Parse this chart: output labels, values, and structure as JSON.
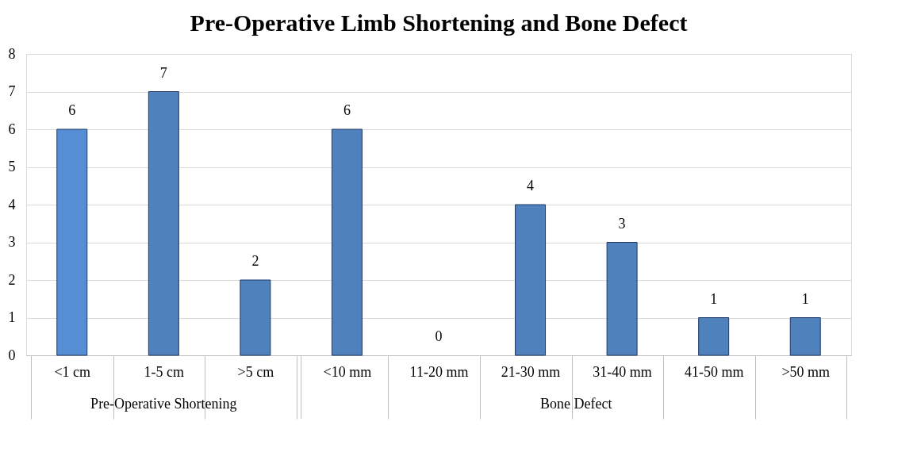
{
  "chart_data": {
    "type": "bar",
    "title": "Pre-Operative Limb Shortening and Bone Defect",
    "categories": [
      "<1 cm",
      "1-5 cm",
      ">5 cm",
      "<10 mm",
      "11-20 mm",
      "21-30 mm",
      "31-40 mm",
      "41-50 mm",
      ">50 mm"
    ],
    "values": [
      6,
      7,
      2,
      6,
      0,
      4,
      3,
      1,
      1
    ],
    "colors": [
      "#558ed5",
      "#4f81bd",
      "#4f81bd",
      "#4f81bd",
      "#4f81bd",
      "#4f81bd",
      "#4f81bd",
      "#4f81bd",
      "#4f81bd"
    ],
    "ylim": [
      0,
      8
    ],
    "yticks": [
      0,
      1,
      2,
      3,
      4,
      5,
      6,
      7,
      8
    ],
    "grid": "y",
    "data_labels": true,
    "annotations": [
      "Pre-Operative Shortening",
      "Bone Defect"
    ]
  }
}
